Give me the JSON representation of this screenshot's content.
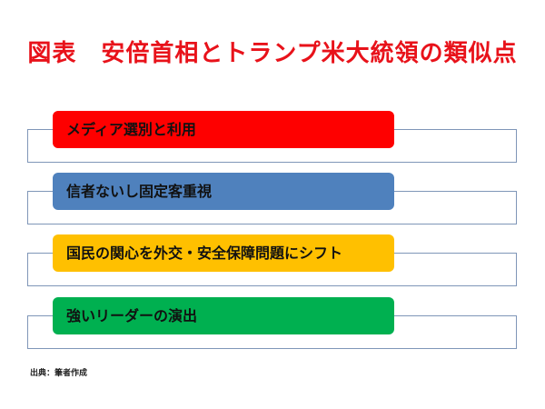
{
  "title": "図表　安倍首相とトランプ米大統領の類似点",
  "items": [
    {
      "label": "メディア選別と利用"
    },
    {
      "label": "信者ないし固定客重視"
    },
    {
      "label": "国民の関心を外交・安全保障問題にシフト"
    },
    {
      "label": "強いリーダーの演出"
    }
  ],
  "source": "出典：筆者作成"
}
